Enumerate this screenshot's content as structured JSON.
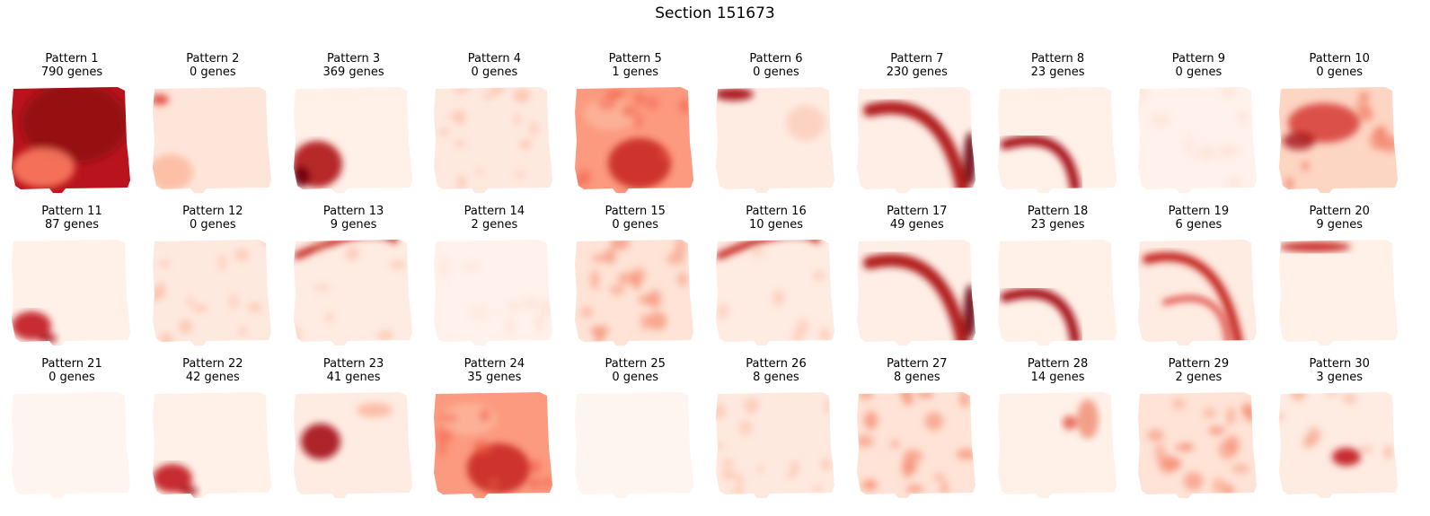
{
  "figure": {
    "title": "Section 151673"
  },
  "chart_data": {
    "type": "heatmap",
    "title": "Section 151673",
    "colormap": "Reds",
    "grid": "3 rows x 10 columns",
    "panels": [
      {
        "pattern": "Pattern 1",
        "genes": "790 genes",
        "motif": "dark_block"
      },
      {
        "pattern": "Pattern 2",
        "genes": "0 genes",
        "motif": "light_edge"
      },
      {
        "pattern": "Pattern 3",
        "genes": "369 genes",
        "motif": "bottom_left"
      },
      {
        "pattern": "Pattern 4",
        "genes": "0 genes",
        "motif": "light_mottled"
      },
      {
        "pattern": "Pattern 5",
        "genes": "1 genes",
        "motif": "medium_fill"
      },
      {
        "pattern": "Pattern 6",
        "genes": "0 genes",
        "motif": "top_left_edge"
      },
      {
        "pattern": "Pattern 7",
        "genes": "230 genes",
        "motif": "arc_outer"
      },
      {
        "pattern": "Pattern 8",
        "genes": "23 genes",
        "motif": "arc_inner"
      },
      {
        "pattern": "Pattern 9",
        "genes": "0 genes",
        "motif": "faint"
      },
      {
        "pattern": "Pattern 10",
        "genes": "0 genes",
        "motif": "upper_blotch"
      },
      {
        "pattern": "Pattern 11",
        "genes": "87 genes",
        "motif": "bottom_left_small"
      },
      {
        "pattern": "Pattern 12",
        "genes": "0 genes",
        "motif": "light_mottled"
      },
      {
        "pattern": "Pattern 13",
        "genes": "9 genes",
        "motif": "top_arc"
      },
      {
        "pattern": "Pattern 14",
        "genes": "2 genes",
        "motif": "faint"
      },
      {
        "pattern": "Pattern 15",
        "genes": "0 genes",
        "motif": "speckled"
      },
      {
        "pattern": "Pattern 16",
        "genes": "10 genes",
        "motif": "top_arc"
      },
      {
        "pattern": "Pattern 17",
        "genes": "49 genes",
        "motif": "arc_outer"
      },
      {
        "pattern": "Pattern 18",
        "genes": "23 genes",
        "motif": "arc_inner"
      },
      {
        "pattern": "Pattern 19",
        "genes": "6 genes",
        "motif": "arc_mid"
      },
      {
        "pattern": "Pattern 20",
        "genes": "9 genes",
        "motif": "top_edge"
      },
      {
        "pattern": "Pattern 21",
        "genes": "0 genes",
        "motif": "flat"
      },
      {
        "pattern": "Pattern 22",
        "genes": "42 genes",
        "motif": "bottom_left_small"
      },
      {
        "pattern": "Pattern 23",
        "genes": "41 genes",
        "motif": "left_blob"
      },
      {
        "pattern": "Pattern 24",
        "genes": "35 genes",
        "motif": "medium_fill"
      },
      {
        "pattern": "Pattern 25",
        "genes": "0 genes",
        "motif": "flat"
      },
      {
        "pattern": "Pattern 26",
        "genes": "8 genes",
        "motif": "light_mottled"
      },
      {
        "pattern": "Pattern 27",
        "genes": "8 genes",
        "motif": "speckled"
      },
      {
        "pattern": "Pattern 28",
        "genes": "14 genes",
        "motif": "right_blob"
      },
      {
        "pattern": "Pattern 29",
        "genes": "2 genes",
        "motif": "speckled"
      },
      {
        "pattern": "Pattern 30",
        "genes": "3 genes",
        "motif": "center_blob"
      }
    ]
  }
}
